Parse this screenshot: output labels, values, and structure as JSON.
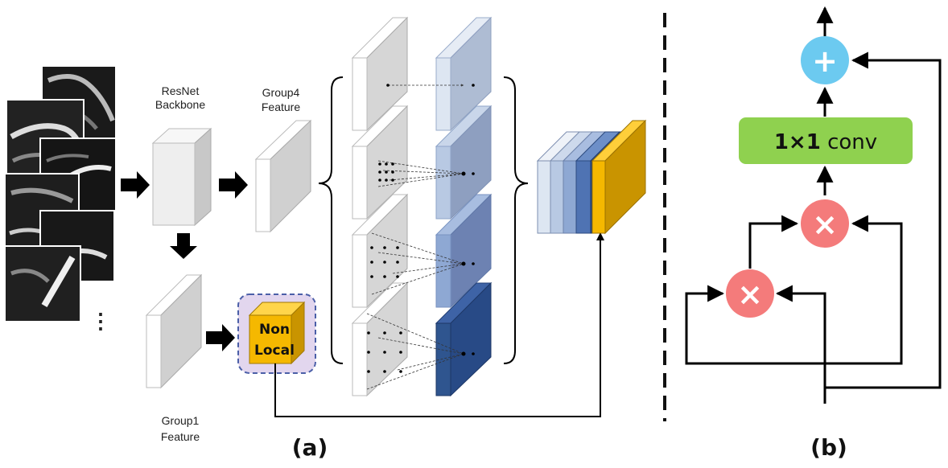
{
  "labels": {
    "resnet_line1": "ResNet",
    "resnet_line2": "Backbone",
    "group4_line1": "Group4",
    "group4_line2": "Feature",
    "group1_line1": "Group1",
    "group1_line2": "Feature",
    "nonlocal_line1": "Non",
    "nonlocal_line2": "Local",
    "ellipsis": "⋮",
    "panel_a": "(a)",
    "panel_b": "(b)",
    "conv_bold": "1×1",
    "conv_rest": " conv",
    "plus_symbol": "+",
    "times_symbol_top": "×",
    "times_symbol_bottom": "×"
  },
  "colors": {
    "pyramid_blues": [
      "#dde6f2",
      "#b8c9e3",
      "#8ea8d3",
      "#4f73b3",
      "#284a86"
    ],
    "gold": "#f5b800",
    "gold_dark": "#c99400",
    "conv_green": "#8fd14f",
    "add_blue": "#6ccaf0",
    "mul_red": "#f47b7b",
    "nonlocal_bg": "#e2d6ee"
  },
  "icons": {
    "plus": "plus-icon",
    "multiply": "multiply-icon",
    "arrow": "arrow-right-icon"
  }
}
